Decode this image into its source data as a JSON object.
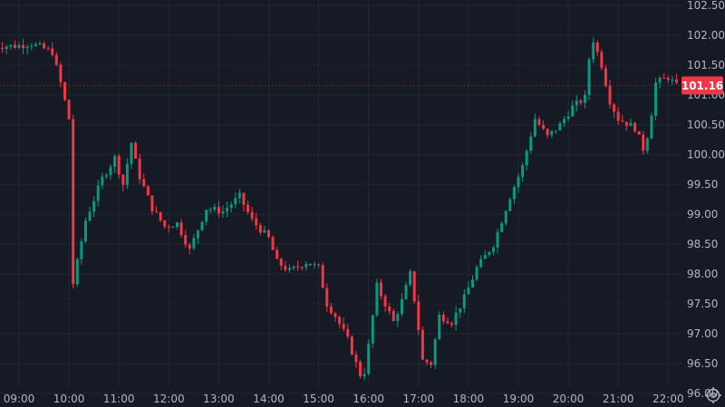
{
  "chart_data": {
    "type": "candlestick",
    "y_ticks": [
      "102.50",
      "102.00",
      "101.50",
      "101.00",
      "100.50",
      "100.00",
      "99.50",
      "99.00",
      "98.50",
      "98.00",
      "97.50",
      "97.00",
      "96.50",
      "96.00"
    ],
    "x_ticks": [
      "09:00",
      "10:00",
      "11:00",
      "12:00",
      "13:00",
      "14:00",
      "15:00",
      "16:00",
      "17:00",
      "18:00",
      "19:00",
      "20:00",
      "21:00",
      "22:00"
    ],
    "ylim": [
      96.0,
      102.5
    ],
    "grid": true,
    "last_price": "101.16",
    "colors": {
      "up": "#089981",
      "down": "#f23645",
      "background": "#161a25",
      "grid": "#232733",
      "text": "#b2b5be"
    },
    "waypoints": [
      [
        "09:00",
        101.82
      ],
      [
        "09:20",
        101.86
      ],
      [
        "09:45",
        101.72
      ],
      [
        "09:55",
        101.2
      ],
      [
        "10:05",
        100.6
      ],
      [
        "10:08",
        97.7
      ],
      [
        "10:25",
        98.9
      ],
      [
        "10:45",
        99.6
      ],
      [
        "11:00",
        99.95
      ],
      [
        "11:10",
        99.5
      ],
      [
        "11:20",
        100.2
      ],
      [
        "11:28",
        99.7
      ],
      [
        "11:45",
        99.1
      ],
      [
        "12:00",
        98.8
      ],
      [
        "12:15",
        98.85
      ],
      [
        "12:30",
        98.4
      ],
      [
        "12:50",
        99.1
      ],
      [
        "13:10",
        99.05
      ],
      [
        "13:30",
        99.3
      ],
      [
        "13:45",
        98.9
      ],
      [
        "14:05",
        98.6
      ],
      [
        "14:15",
        98.2
      ],
      [
        "14:30",
        98.05
      ],
      [
        "14:50",
        98.2
      ],
      [
        "15:05",
        98.1
      ],
      [
        "15:15",
        97.5
      ],
      [
        "15:25",
        97.3
      ],
      [
        "15:40",
        96.9
      ],
      [
        "15:50",
        96.5
      ],
      [
        "15:58",
        96.2
      ],
      [
        "16:05",
        96.8
      ],
      [
        "16:15",
        97.8
      ],
      [
        "16:25",
        97.5
      ],
      [
        "16:35",
        97.2
      ],
      [
        "16:45",
        97.55
      ],
      [
        "16:55",
        98.0
      ],
      [
        "17:02",
        97.4
      ],
      [
        "17:10",
        96.55
      ],
      [
        "17:20",
        96.5
      ],
      [
        "17:30",
        97.3
      ],
      [
        "17:45",
        97.2
      ],
      [
        "18:00",
        97.6
      ],
      [
        "18:15",
        98.1
      ],
      [
        "18:35",
        98.5
      ],
      [
        "18:55",
        99.3
      ],
      [
        "19:10",
        99.8
      ],
      [
        "19:25",
        100.6
      ],
      [
        "19:40",
        100.3
      ],
      [
        "19:55",
        100.5
      ],
      [
        "20:10",
        100.8
      ],
      [
        "20:25",
        100.95
      ],
      [
        "20:33",
        102.0
      ],
      [
        "20:45",
        101.5
      ],
      [
        "20:55",
        100.9
      ],
      [
        "21:05",
        100.6
      ],
      [
        "21:25",
        100.45
      ],
      [
        "21:35",
        100.1
      ],
      [
        "21:42",
        100.4
      ],
      [
        "21:50",
        101.2
      ],
      [
        "22:05",
        101.3
      ],
      [
        "22:15",
        101.15
      ],
      [
        "22:30",
        101.16
      ]
    ]
  }
}
